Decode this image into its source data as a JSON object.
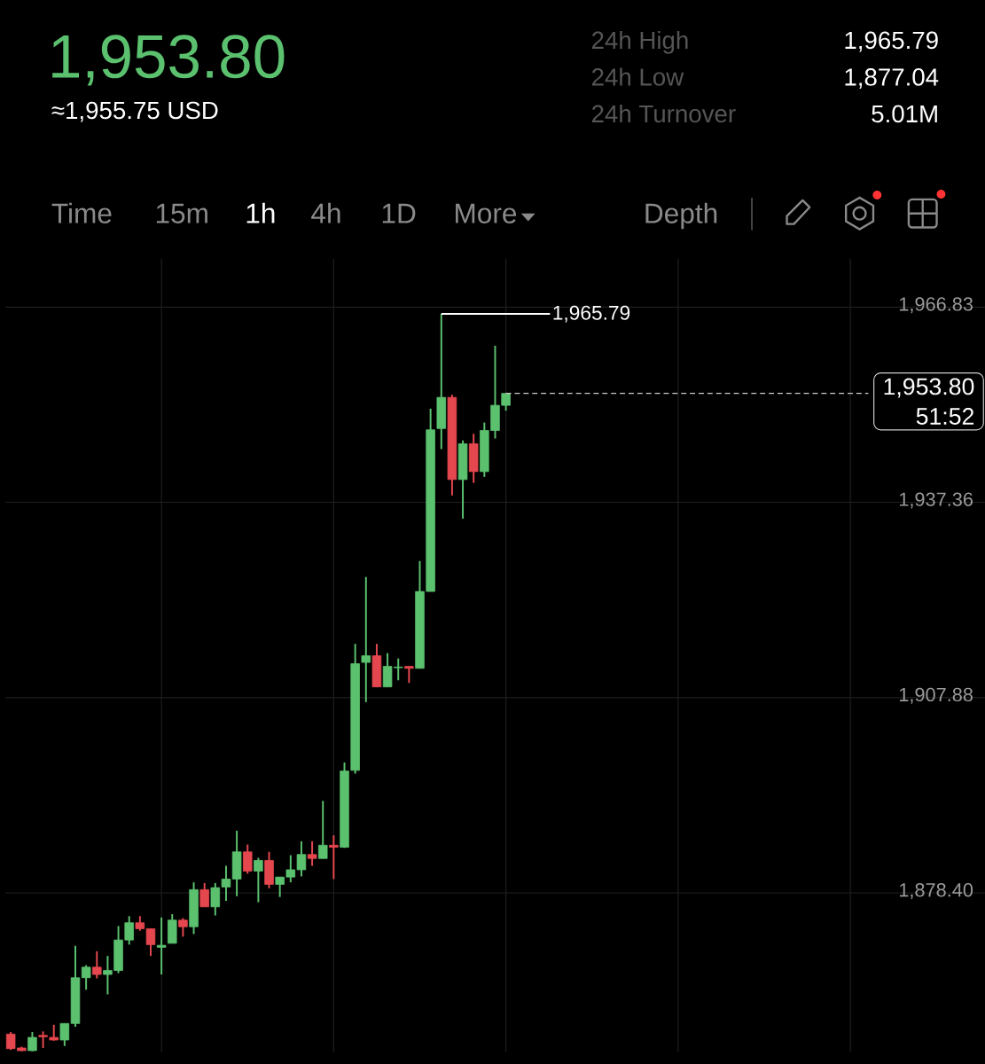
{
  "chart_data": {
    "type": "candlestick",
    "title": "1,953.80",
    "subtitle": "≈1,955.75 USD",
    "categories": [
      null,
      null,
      null,
      null,
      null,
      null,
      null,
      null,
      null,
      null,
      null,
      null,
      null,
      null,
      null,
      null,
      null,
      null,
      null,
      null,
      null,
      null,
      null,
      null,
      null,
      null,
      null,
      null,
      null,
      null,
      null,
      null,
      null,
      null,
      null,
      null,
      null,
      null,
      null,
      null,
      null,
      null,
      null,
      null,
      null,
      null,
      null,
      null,
      null,
      null,
      null,
      null,
      null,
      null,
      null,
      null,
      null,
      null,
      null,
      null,
      null,
      null,
      null,
      null,
      null,
      null,
      null,
      null,
      null,
      null,
      null,
      null,
      null,
      null,
      null,
      null,
      null,
      null,
      null,
      null,
      null,
      null,
      null,
      null,
      null,
      null,
      null,
      null,
      null,
      null,
      null
    ],
    "ohlc": [
      [
        1857.1,
        1857.4,
        1854.7,
        1854.9
      ],
      [
        1855.0,
        1855.2,
        1854.5,
        1854.6
      ],
      [
        1854.6,
        1857.4,
        1854.5,
        1856.6
      ],
      [
        1856.9,
        1857.5,
        1855.0,
        1856.7
      ],
      [
        1856.6,
        1858.5,
        1856.1,
        1856.2
      ],
      [
        1856.2,
        1858.7,
        1855.3,
        1858.7
      ],
      [
        1858.7,
        1870.4,
        1858.2,
        1865.6
      ],
      [
        1865.6,
        1867.5,
        1863.8,
        1867.2
      ],
      [
        1867.2,
        1869.6,
        1865.5,
        1866.1
      ],
      [
        1866.1,
        1868.9,
        1863.1,
        1866.7
      ],
      [
        1866.7,
        1873.4,
        1866.3,
        1871.3
      ],
      [
        1871.3,
        1874.9,
        1870.6,
        1873.9
      ],
      [
        1873.9,
        1874.9,
        1872.7,
        1873.0
      ],
      [
        1873.0,
        1873.0,
        1868.9,
        1870.6
      ],
      [
        1870.2,
        1874.7,
        1866.1,
        1870.5
      ],
      [
        1870.8,
        1875.2,
        1870.8,
        1874.3
      ],
      [
        1874.3,
        1874.6,
        1871.8,
        1873.3
      ],
      [
        1873.3,
        1880.0,
        1872.2,
        1878.9
      ],
      [
        1878.9,
        1879.9,
        1876.3,
        1876.3
      ],
      [
        1876.3,
        1879.9,
        1875.0,
        1879.2
      ],
      [
        1879.3,
        1882.5,
        1877.2,
        1880.5
      ],
      [
        1880.5,
        1887.8,
        1877.9,
        1884.6
      ],
      [
        1884.6,
        1885.7,
        1881.3,
        1881.7
      ],
      [
        1881.7,
        1883.7,
        1877.0,
        1883.3
      ],
      [
        1883.3,
        1884.6,
        1879.1,
        1879.7
      ],
      [
        1879.7,
        1880.8,
        1877.8,
        1880.8
      ],
      [
        1880.8,
        1884.1,
        1880.0,
        1881.9
      ],
      [
        1881.9,
        1886.2,
        1880.9,
        1884.2
      ],
      [
        1884.2,
        1886.2,
        1882.5,
        1883.6
      ],
      [
        1883.6,
        1892.3,
        1883.6,
        1885.6
      ],
      [
        1885.6,
        1887.1,
        1880.5,
        1885.3
      ],
      [
        1885.3,
        1898.1,
        1885.2,
        1896.8
      ],
      [
        1896.9,
        1916.0,
        1896.4,
        1913.0
      ],
      [
        1913.2,
        1926.1,
        1907.2,
        1914.2
      ],
      [
        1914.2,
        1916.0,
        1909.5,
        1909.5
      ],
      [
        1909.5,
        1914.6,
        1909.5,
        1912.6
      ],
      [
        1912.4,
        1913.8,
        1910.5,
        1912.5
      ],
      [
        1912.6,
        1912.6,
        1910.1,
        1912.3
      ],
      [
        1912.3,
        1928.5,
        1912.3,
        1923.9
      ],
      [
        1923.9,
        1951.5,
        1923.9,
        1948.3
      ],
      [
        1948.5,
        1965.79,
        1945.4,
        1953.2
      ],
      [
        1953.2,
        1953.6,
        1938.4,
        1940.8
      ],
      [
        1940.8,
        1946.7,
        1934.9,
        1946.2
      ],
      [
        1946.2,
        1947.7,
        1940.3,
        1942.0
      ],
      [
        1942.0,
        1949.4,
        1941.2,
        1948.2
      ],
      [
        1948.2,
        1961.0,
        1947.0,
        1952.0
      ],
      [
        1952.0,
        1953.8,
        1951.2,
        1953.8
      ],
      null,
      null,
      null,
      null,
      null,
      null,
      null,
      null,
      null,
      null,
      null,
      null,
      null,
      null,
      null,
      null,
      null,
      null,
      null,
      null,
      null,
      null,
      null,
      null,
      null,
      null,
      null,
      null,
      null,
      null,
      null,
      null,
      null,
      null,
      null,
      null,
      null,
      null,
      null,
      null,
      null,
      null,
      null,
      null
    ],
    "colors": [
      "#e5474f",
      "#e5474f",
      "#5bc16f",
      "#e5474f",
      "#e5474f",
      "#5bc16f",
      "#5bc16f",
      "#5bc16f",
      "#e5474f",
      "#5bc16f",
      "#5bc16f",
      "#5bc16f",
      "#e5474f",
      "#e5474f",
      "#5bc16f",
      "#5bc16f",
      "#e5474f",
      "#5bc16f",
      "#e5474f",
      "#5bc16f",
      "#5bc16f",
      "#5bc16f",
      "#e5474f",
      "#5bc16f",
      "#e5474f",
      "#5bc16f",
      "#5bc16f",
      "#5bc16f",
      "#e5474f",
      "#5bc16f",
      "#e5474f",
      "#5bc16f",
      "#5bc16f",
      "#5bc16f",
      "#e5474f",
      "#5bc16f",
      "#5bc16f",
      "#e5474f",
      "#5bc16f",
      "#5bc16f",
      "#5bc16f",
      "#e5474f",
      "#5bc16f",
      "#e5474f",
      "#5bc16f",
      "#5bc16f",
      "#5bc16f",
      null,
      null,
      null,
      null,
      null,
      null,
      null,
      null,
      null,
      null,
      null,
      null,
      null,
      null,
      null,
      null,
      null,
      null,
      null,
      null,
      null,
      null,
      null,
      null,
      null,
      null,
      null,
      null,
      null,
      null,
      null,
      null,
      null,
      null,
      null,
      null,
      null,
      null,
      null,
      null,
      null,
      null,
      null,
      null
    ],
    "ylim": [
      1854.4,
      2013.1
    ],
    "yticks": [
      {
        "value": 1966.83,
        "label": "1,966.83"
      },
      {
        "value": 1937.36,
        "label": "1,937.36"
      },
      {
        "value": 1907.88,
        "label": "1,907.88"
      },
      {
        "value": 1878.4,
        "label": "1,878.40"
      }
    ],
    "grid": true,
    "ref_lines": [
      {
        "axis": "y",
        "value": 1953.8,
        "label": "1,953.80",
        "color": "#cccccc",
        "line_style": "dashed"
      }
    ],
    "annotations": [
      "24h High",
      "1,965.79",
      "24h Low",
      "1,877.04",
      "24h Turnover",
      "5.01M",
      "Time",
      "15m",
      "1h",
      "4h",
      "1D",
      "More",
      "Depth",
      "1,965.79",
      "51:52"
    ]
  }
}
